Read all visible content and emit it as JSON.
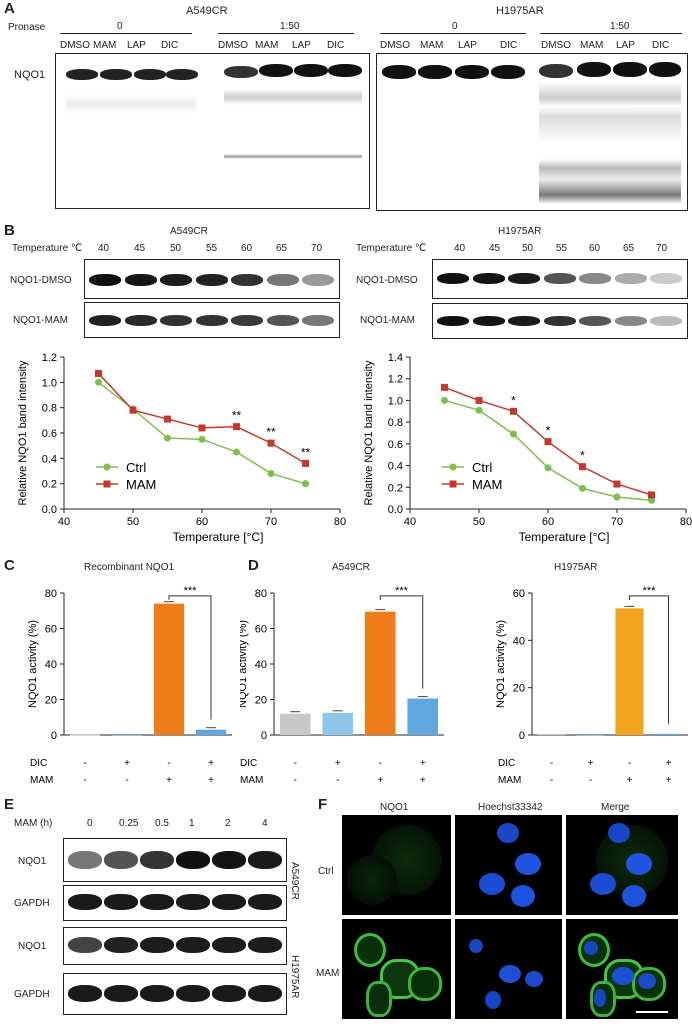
{
  "panel_labels": {
    "A": "A",
    "B": "B",
    "C": "C",
    "D": "D",
    "E": "E",
    "F": "F"
  },
  "panelA": {
    "pronase_label": "Pronase",
    "lines": [
      "A549CR",
      "H1975AR"
    ],
    "doses": [
      "0",
      "1:50"
    ],
    "lanes": [
      "DMSO",
      "MAM",
      "LAP",
      "DIC"
    ],
    "row_label": "NQO1"
  },
  "panelB": {
    "titles": [
      "A549CR",
      "H1975AR"
    ],
    "temp_label": "Temperature ℃",
    "temps": [
      "40",
      "45",
      "50",
      "55",
      "60",
      "65",
      "70"
    ],
    "rows": [
      "NQO1-DMSO",
      "NQO1-MAM"
    ]
  },
  "panelC": {
    "title": "Recombinant NQO1"
  },
  "panelD": {
    "titles": [
      "A549CR",
      "H1975AR"
    ]
  },
  "treat_rows": {
    "labels": [
      "DIC",
      "MAM"
    ],
    "dic": [
      "-",
      "+",
      "-",
      "+"
    ],
    "mam": [
      "-",
      "-",
      "+",
      "+"
    ]
  },
  "panelE": {
    "header": "MAM (h)",
    "times": [
      "0",
      "0.25",
      "0.5",
      "1",
      "2",
      "4"
    ],
    "rows": [
      "NQO1",
      "GAPDH",
      "NQO1",
      "GAPDH"
    ],
    "side": [
      "A549CR",
      "H1975AR"
    ]
  },
  "panelF": {
    "cols": [
      "NQO1",
      "Hoechst33342",
      "Merge"
    ],
    "rows": [
      "Ctrl",
      "MAM"
    ]
  },
  "chart_data": [
    {
      "type": "line",
      "title": "",
      "xlabel": "Temperature [°C]",
      "ylabel": "Relative NQO1 band intensity",
      "xlim": [
        40,
        80
      ],
      "ylim": [
        0,
        1.2
      ],
      "xticks": [
        "40",
        "50",
        "60",
        "70",
        "80"
      ],
      "yticks": [
        "0.0",
        "0.2",
        "0.4",
        "0.6",
        "0.8",
        "1.0",
        "1.2"
      ],
      "x": [
        45,
        50,
        55,
        60,
        65,
        70,
        75
      ],
      "series": [
        {
          "name": "Ctrl",
          "color": "#7cbf4a",
          "values": [
            1.0,
            0.79,
            0.56,
            0.55,
            0.45,
            0.28,
            0.2
          ]
        },
        {
          "name": "MAM",
          "color": "#c8372d",
          "values": [
            1.07,
            0.78,
            0.71,
            0.64,
            0.65,
            0.52,
            0.36
          ]
        }
      ],
      "annotations": [
        {
          "x": 65,
          "text": "**"
        },
        {
          "x": 70,
          "text": "**"
        },
        {
          "x": 75,
          "text": "**"
        }
      ],
      "legend": "bottom-left"
    },
    {
      "type": "line",
      "title": "",
      "xlabel": "Temperature [°C]",
      "ylabel": "Relative NQO1 band intensity",
      "xlim": [
        40,
        80
      ],
      "ylim": [
        0,
        1.4
      ],
      "xticks": [
        "40",
        "50",
        "60",
        "70",
        "80"
      ],
      "yticks": [
        "0.0",
        "0.2",
        "0.4",
        "0.6",
        "0.8",
        "1.0",
        "1.2",
        "1.4"
      ],
      "x": [
        45,
        50,
        55,
        60,
        65,
        70,
        75
      ],
      "series": [
        {
          "name": "Ctrl",
          "color": "#7cbf4a",
          "values": [
            1.0,
            0.91,
            0.69,
            0.38,
            0.19,
            0.11,
            0.08
          ]
        },
        {
          "name": "MAM",
          "color": "#c8372d",
          "values": [
            1.12,
            1.0,
            0.9,
            0.62,
            0.39,
            0.23,
            0.13
          ]
        }
      ],
      "annotations": [
        {
          "x": 55,
          "text": "*"
        },
        {
          "x": 60,
          "text": "*"
        },
        {
          "x": 65,
          "text": "*"
        }
      ],
      "legend": "bottom-left"
    },
    {
      "type": "bar",
      "title": "Recombinant NQO1",
      "ylabel": "NQO1 activity (%)",
      "ylim": [
        0,
        80
      ],
      "yticks": [
        "0",
        "20",
        "40",
        "60",
        "80"
      ],
      "values": [
        0.2,
        -0.5,
        74,
        3
      ],
      "colors": [
        "#c8c8c8",
        "#8ec7e8",
        "#ee7d1a",
        "#5fa7dc"
      ],
      "sig": "***"
    },
    {
      "type": "bar",
      "title": "A549CR",
      "ylabel": "NQO1 activity (%)",
      "ylim": [
        0,
        80
      ],
      "yticks": [
        "0",
        "20",
        "40",
        "60",
        "80"
      ],
      "values": [
        12,
        12.5,
        69.5,
        20.5
      ],
      "colors": [
        "#c8c8c8",
        "#8ec7e8",
        "#ee7d1a",
        "#5fa7dc"
      ],
      "sig": "***"
    },
    {
      "type": "bar",
      "title": "H1975AR",
      "ylabel": "NQO1 activity (%)",
      "ylim": [
        0,
        60
      ],
      "yticks": [
        "0",
        "20",
        "40",
        "60"
      ],
      "values": [
        0.4,
        0,
        53.5,
        0.5
      ],
      "colors": [
        "#c8c8c8",
        "#8ec7e8",
        "#f2a41c",
        "#5fa7dc"
      ],
      "sig": "***"
    }
  ]
}
